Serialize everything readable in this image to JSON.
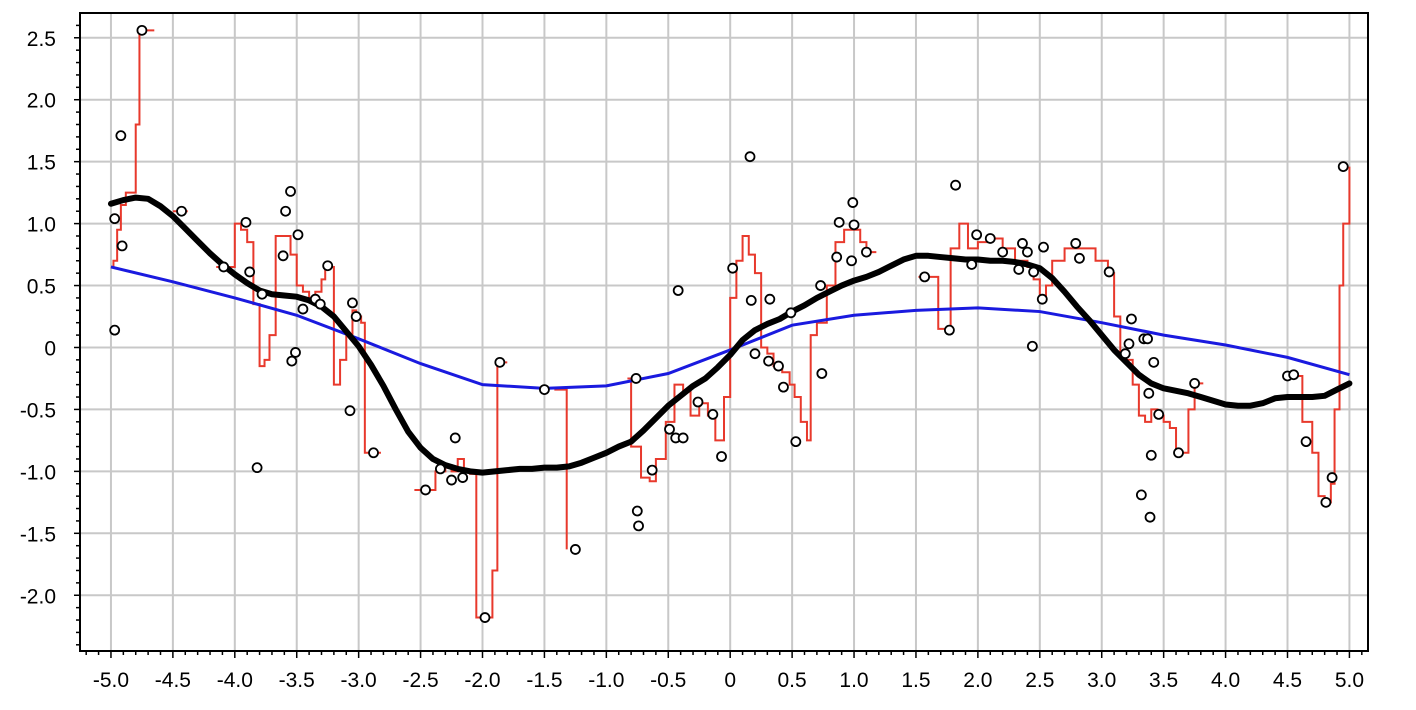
{
  "chart_data": {
    "type": "scatter",
    "title": "",
    "xlabel": "",
    "ylabel": "",
    "xlim": [
      -5.25,
      5.15
    ],
    "ylim": [
      -2.45,
      2.7
    ],
    "grid": true,
    "x_ticks": [
      -5.0,
      -4.5,
      -4.0,
      -3.5,
      -3.0,
      -2.5,
      -2.0,
      -1.5,
      -1.0,
      -0.5,
      0,
      0.5,
      1.0,
      1.5,
      2.0,
      2.5,
      3.0,
      3.5,
      4.0,
      4.5,
      5.0
    ],
    "x_tick_labels": [
      "-5.0",
      "-4.5",
      "-4.0",
      "-3.5",
      "-3.0",
      "-2.5",
      "-2.0",
      "-1.5",
      "-1.0",
      "-0.5",
      "0",
      "0.5",
      "1.0",
      "1.5",
      "2.0",
      "2.5",
      "3.0",
      "3.5",
      "4.0",
      "4.5",
      "5.0"
    ],
    "y_ticks": [
      2.5,
      2.0,
      1.5,
      1.0,
      0.5,
      0,
      -0.5,
      -1.0,
      -1.5,
      -2.0
    ],
    "y_tick_labels": [
      "2.5",
      "2.0",
      "1.5",
      "1.0",
      "0.5",
      "0",
      "-0.5",
      "-1.0",
      "-1.5",
      "-2.0"
    ],
    "colors": {
      "points": "#000000",
      "nearest_neighbor": "#e8392c",
      "smooth_fit": "#000000",
      "linear_fit": "#1a1adf",
      "grid": "#c8c8c8"
    },
    "points": [
      [
        -4.97,
        1.04
      ],
      [
        -4.97,
        0.14
      ],
      [
        -4.92,
        1.71
      ],
      [
        -4.91,
        0.82
      ],
      [
        -4.75,
        2.56
      ],
      [
        -4.43,
        1.1
      ],
      [
        -4.09,
        0.65
      ],
      [
        -3.91,
        1.01
      ],
      [
        -3.88,
        0.61
      ],
      [
        -3.82,
        -0.97
      ],
      [
        -3.78,
        0.43
      ],
      [
        -3.61,
        0.74
      ],
      [
        -3.59,
        1.1
      ],
      [
        -3.55,
        1.26
      ],
      [
        -3.54,
        -0.11
      ],
      [
        -3.51,
        -0.04
      ],
      [
        -3.49,
        0.91
      ],
      [
        -3.45,
        0.31
      ],
      [
        -3.35,
        0.39
      ],
      [
        -3.31,
        0.35
      ],
      [
        -3.25,
        0.66
      ],
      [
        -3.07,
        -0.51
      ],
      [
        -3.05,
        0.36
      ],
      [
        -3.02,
        0.25
      ],
      [
        -2.88,
        -0.85
      ],
      [
        -2.46,
        -1.15
      ],
      [
        -2.34,
        -0.98
      ],
      [
        -2.25,
        -1.07
      ],
      [
        -2.22,
        -0.73
      ],
      [
        -2.16,
        -1.05
      ],
      [
        -1.98,
        -2.18
      ],
      [
        -1.86,
        -0.12
      ],
      [
        -1.5,
        -0.34
      ],
      [
        -1.25,
        -1.63
      ],
      [
        -0.76,
        -0.25
      ],
      [
        -0.75,
        -1.32
      ],
      [
        -0.74,
        -1.44
      ],
      [
        -0.63,
        -0.99
      ],
      [
        -0.49,
        -0.66
      ],
      [
        -0.44,
        -0.73
      ],
      [
        -0.42,
        0.46
      ],
      [
        -0.38,
        -0.73
      ],
      [
        -0.26,
        -0.44
      ],
      [
        -0.14,
        -0.54
      ],
      [
        -0.07,
        -0.88
      ],
      [
        0.02,
        0.64
      ],
      [
        0.16,
        1.54
      ],
      [
        0.17,
        0.38
      ],
      [
        0.2,
        -0.05
      ],
      [
        0.31,
        -0.11
      ],
      [
        0.32,
        0.39
      ],
      [
        0.39,
        -0.15
      ],
      [
        0.43,
        -0.32
      ],
      [
        0.49,
        0.28
      ],
      [
        0.53,
        -0.76
      ],
      [
        0.73,
        0.5
      ],
      [
        0.74,
        -0.21
      ],
      [
        0.86,
        0.73
      ],
      [
        0.88,
        1.01
      ],
      [
        0.98,
        0.7
      ],
      [
        0.99,
        1.17
      ],
      [
        1.0,
        0.99
      ],
      [
        1.1,
        0.77
      ],
      [
        1.57,
        0.57
      ],
      [
        1.77,
        0.14
      ],
      [
        1.82,
        1.31
      ],
      [
        1.95,
        0.67
      ],
      [
        1.99,
        0.91
      ],
      [
        2.1,
        0.88
      ],
      [
        2.2,
        0.77
      ],
      [
        2.33,
        0.63
      ],
      [
        2.36,
        0.84
      ],
      [
        2.4,
        0.77
      ],
      [
        2.44,
        0.01
      ],
      [
        2.45,
        0.61
      ],
      [
        2.52,
        0.39
      ],
      [
        2.53,
        0.81
      ],
      [
        2.79,
        0.84
      ],
      [
        2.82,
        0.72
      ],
      [
        3.06,
        0.61
      ],
      [
        3.19,
        -0.05
      ],
      [
        3.22,
        0.03
      ],
      [
        3.24,
        0.23
      ],
      [
        3.32,
        -1.19
      ],
      [
        3.34,
        0.07
      ],
      [
        3.37,
        0.07
      ],
      [
        3.38,
        -0.37
      ],
      [
        3.39,
        -1.37
      ],
      [
        3.4,
        -0.87
      ],
      [
        3.42,
        -0.12
      ],
      [
        3.46,
        -0.54
      ],
      [
        3.62,
        -0.85
      ],
      [
        3.75,
        -0.29
      ],
      [
        4.5,
        -0.23
      ],
      [
        4.55,
        -0.22
      ],
      [
        4.65,
        -0.76
      ],
      [
        4.81,
        -1.25
      ],
      [
        4.86,
        -1.05
      ],
      [
        4.95,
        1.46
      ]
    ],
    "smooth_fit": [
      [
        -5.0,
        1.16
      ],
      [
        -4.9,
        1.19
      ],
      [
        -4.8,
        1.21
      ],
      [
        -4.7,
        1.2
      ],
      [
        -4.6,
        1.14
      ],
      [
        -4.5,
        1.06
      ],
      [
        -4.4,
        0.96
      ],
      [
        -4.3,
        0.86
      ],
      [
        -4.2,
        0.76
      ],
      [
        -4.1,
        0.67
      ],
      [
        -4.0,
        0.59
      ],
      [
        -3.9,
        0.52
      ],
      [
        -3.8,
        0.46
      ],
      [
        -3.7,
        0.43
      ],
      [
        -3.6,
        0.42
      ],
      [
        -3.5,
        0.41
      ],
      [
        -3.4,
        0.38
      ],
      [
        -3.3,
        0.33
      ],
      [
        -3.2,
        0.25
      ],
      [
        -3.1,
        0.13
      ],
      [
        -3.0,
        0.01
      ],
      [
        -2.9,
        -0.14
      ],
      [
        -2.8,
        -0.31
      ],
      [
        -2.7,
        -0.5
      ],
      [
        -2.6,
        -0.68
      ],
      [
        -2.5,
        -0.81
      ],
      [
        -2.4,
        -0.9
      ],
      [
        -2.3,
        -0.95
      ],
      [
        -2.2,
        -0.98
      ],
      [
        -2.1,
        -1.0
      ],
      [
        -2.0,
        -1.01
      ],
      [
        -1.9,
        -1.0
      ],
      [
        -1.8,
        -0.99
      ],
      [
        -1.7,
        -0.98
      ],
      [
        -1.6,
        -0.98
      ],
      [
        -1.5,
        -0.97
      ],
      [
        -1.4,
        -0.97
      ],
      [
        -1.3,
        -0.96
      ],
      [
        -1.2,
        -0.93
      ],
      [
        -1.1,
        -0.89
      ],
      [
        -1.0,
        -0.85
      ],
      [
        -0.9,
        -0.8
      ],
      [
        -0.8,
        -0.76
      ],
      [
        -0.7,
        -0.67
      ],
      [
        -0.6,
        -0.57
      ],
      [
        -0.5,
        -0.47
      ],
      [
        -0.4,
        -0.39
      ],
      [
        -0.3,
        -0.31
      ],
      [
        -0.2,
        -0.25
      ],
      [
        -0.1,
        -0.16
      ],
      [
        0.0,
        -0.06
      ],
      [
        0.1,
        0.06
      ],
      [
        0.2,
        0.14
      ],
      [
        0.3,
        0.19
      ],
      [
        0.4,
        0.23
      ],
      [
        0.5,
        0.29
      ],
      [
        0.6,
        0.34
      ],
      [
        0.7,
        0.4
      ],
      [
        0.8,
        0.45
      ],
      [
        0.9,
        0.5
      ],
      [
        1.0,
        0.54
      ],
      [
        1.1,
        0.57
      ],
      [
        1.2,
        0.61
      ],
      [
        1.3,
        0.66
      ],
      [
        1.4,
        0.71
      ],
      [
        1.5,
        0.74
      ],
      [
        1.6,
        0.74
      ],
      [
        1.7,
        0.73
      ],
      [
        1.8,
        0.72
      ],
      [
        1.9,
        0.71
      ],
      [
        2.0,
        0.71
      ],
      [
        2.1,
        0.7
      ],
      [
        2.2,
        0.7
      ],
      [
        2.3,
        0.69
      ],
      [
        2.4,
        0.67
      ],
      [
        2.5,
        0.64
      ],
      [
        2.6,
        0.56
      ],
      [
        2.7,
        0.45
      ],
      [
        2.8,
        0.33
      ],
      [
        2.9,
        0.22
      ],
      [
        3.0,
        0.1
      ],
      [
        3.1,
        -0.02
      ],
      [
        3.2,
        -0.12
      ],
      [
        3.3,
        -0.22
      ],
      [
        3.4,
        -0.29
      ],
      [
        3.5,
        -0.33
      ],
      [
        3.6,
        -0.35
      ],
      [
        3.7,
        -0.37
      ],
      [
        3.8,
        -0.4
      ],
      [
        3.9,
        -0.43
      ],
      [
        4.0,
        -0.46
      ],
      [
        4.1,
        -0.47
      ],
      [
        4.2,
        -0.47
      ],
      [
        4.3,
        -0.45
      ],
      [
        4.4,
        -0.41
      ],
      [
        4.5,
        -0.4
      ],
      [
        4.6,
        -0.4
      ],
      [
        4.7,
        -0.4
      ],
      [
        4.8,
        -0.39
      ],
      [
        4.9,
        -0.34
      ],
      [
        5.0,
        -0.29
      ]
    ],
    "linear_fit": [
      [
        -5.0,
        0.65
      ],
      [
        -4.5,
        0.53
      ],
      [
        -4.0,
        0.4
      ],
      [
        -3.5,
        0.26
      ],
      [
        -3.0,
        0.07
      ],
      [
        -2.5,
        -0.13
      ],
      [
        -2.0,
        -0.3
      ],
      [
        -1.5,
        -0.33
      ],
      [
        -1.0,
        -0.31
      ],
      [
        -0.5,
        -0.21
      ],
      [
        0.0,
        -0.02
      ],
      [
        0.5,
        0.18
      ],
      [
        1.0,
        0.26
      ],
      [
        1.5,
        0.3
      ],
      [
        2.0,
        0.32
      ],
      [
        2.5,
        0.29
      ],
      [
        3.0,
        0.2
      ],
      [
        3.5,
        0.1
      ],
      [
        4.0,
        0.02
      ],
      [
        4.5,
        -0.08
      ],
      [
        5.0,
        -0.22
      ]
    ],
    "nearest_neighbor": [
      [
        -5.0,
        0.65
      ],
      [
        -4.98,
        0.7
      ],
      [
        -4.95,
        0.95
      ],
      [
        -4.92,
        1.15
      ],
      [
        -4.88,
        1.25
      ],
      [
        -4.82,
        1.25
      ],
      [
        -4.8,
        1.8
      ],
      [
        -4.77,
        2.56
      ],
      [
        -4.65,
        2.56
      ],
      [
        -4.5,
        1.1
      ],
      [
        -4.38,
        1.1
      ],
      [
        -4.15,
        0.65
      ],
      [
        -4.05,
        0.65
      ],
      [
        -4.0,
        1.0
      ],
      [
        -3.95,
        0.95
      ],
      [
        -3.9,
        0.85
      ],
      [
        -3.85,
        0.35
      ],
      [
        -3.8,
        -0.15
      ],
      [
        -3.76,
        -0.1
      ],
      [
        -3.72,
        0.1
      ],
      [
        -3.67,
        0.9
      ],
      [
        -3.6,
        0.9
      ],
      [
        -3.55,
        0.75
      ],
      [
        -3.5,
        0.5
      ],
      [
        -3.45,
        0.45
      ],
      [
        -3.4,
        0.4
      ],
      [
        -3.35,
        0.45
      ],
      [
        -3.3,
        0.55
      ],
      [
        -3.27,
        0.65
      ],
      [
        -3.22,
        0.65
      ],
      [
        -3.2,
        -0.3
      ],
      [
        -3.15,
        -0.1
      ],
      [
        -3.1,
        0.1
      ],
      [
        -3.05,
        0.3
      ],
      [
        -3.02,
        0.25
      ],
      [
        -2.98,
        0.2
      ],
      [
        -2.95,
        -0.85
      ],
      [
        -2.82,
        -0.85
      ],
      [
        -2.55,
        -1.15
      ],
      [
        -2.45,
        -1.15
      ],
      [
        -2.38,
        -1.0
      ],
      [
        -2.3,
        -0.95
      ],
      [
        -2.25,
        -1.0
      ],
      [
        -2.2,
        -0.9
      ],
      [
        -2.15,
        -1.0
      ],
      [
        -2.1,
        -1.02
      ],
      [
        -2.05,
        -2.18
      ],
      [
        -1.95,
        -2.18
      ],
      [
        -1.92,
        -1.8
      ],
      [
        -1.88,
        -0.12
      ],
      [
        -1.8,
        -0.12
      ],
      [
        -1.58,
        -0.34
      ],
      [
        -1.42,
        -0.34
      ],
      [
        -1.32,
        -1.63
      ],
      [
        -1.17,
        -1.63
      ],
      [
        -0.83,
        -0.25
      ],
      [
        -0.8,
        -0.8
      ],
      [
        -0.72,
        -1.05
      ],
      [
        -0.65,
        -1.08
      ],
      [
        -0.6,
        -0.9
      ],
      [
        -0.52,
        -0.6
      ],
      [
        -0.45,
        -0.3
      ],
      [
        -0.38,
        -0.35
      ],
      [
        -0.32,
        -0.55
      ],
      [
        -0.25,
        -0.45
      ],
      [
        -0.18,
        -0.55
      ],
      [
        -0.12,
        -0.75
      ],
      [
        -0.05,
        -0.4
      ],
      [
        0.0,
        0.4
      ],
      [
        0.05,
        0.7
      ],
      [
        0.1,
        0.9
      ],
      [
        0.15,
        0.75
      ],
      [
        0.2,
        0.6
      ],
      [
        0.25,
        0.0
      ],
      [
        0.3,
        -0.05
      ],
      [
        0.35,
        -0.15
      ],
      [
        0.42,
        -0.2
      ],
      [
        0.48,
        -0.3
      ],
      [
        0.52,
        -0.4
      ],
      [
        0.57,
        -0.6
      ],
      [
        0.62,
        -0.75
      ],
      [
        0.65,
        0.1
      ],
      [
        0.7,
        0.2
      ],
      [
        0.78,
        0.5
      ],
      [
        0.85,
        0.85
      ],
      [
        0.92,
        0.95
      ],
      [
        1.0,
        0.95
      ],
      [
        1.05,
        0.85
      ],
      [
        1.1,
        0.77
      ],
      [
        1.18,
        0.77
      ],
      [
        1.52,
        0.57
      ],
      [
        1.65,
        0.57
      ],
      [
        1.68,
        0.15
      ],
      [
        1.75,
        0.14
      ],
      [
        1.78,
        0.8
      ],
      [
        1.85,
        1.0
      ],
      [
        1.92,
        0.8
      ],
      [
        2.0,
        0.85
      ],
      [
        2.1,
        0.88
      ],
      [
        2.2,
        0.8
      ],
      [
        2.3,
        0.7
      ],
      [
        2.4,
        0.65
      ],
      [
        2.45,
        0.55
      ],
      [
        2.5,
        0.42
      ],
      [
        2.55,
        0.5
      ],
      [
        2.6,
        0.7
      ],
      [
        2.7,
        0.8
      ],
      [
        2.85,
        0.8
      ],
      [
        2.95,
        0.7
      ],
      [
        3.05,
        0.6
      ],
      [
        3.1,
        0.25
      ],
      [
        3.15,
        -0.05
      ],
      [
        3.2,
        -0.1
      ],
      [
        3.25,
        -0.3
      ],
      [
        3.3,
        -0.55
      ],
      [
        3.35,
        -0.6
      ],
      [
        3.4,
        -0.5
      ],
      [
        3.45,
        -0.55
      ],
      [
        3.5,
        -0.6
      ],
      [
        3.55,
        -0.65
      ],
      [
        3.6,
        -0.85
      ],
      [
        3.65,
        -0.85
      ],
      [
        3.7,
        -0.5
      ],
      [
        3.75,
        -0.29
      ],
      [
        3.82,
        -0.29
      ],
      [
        4.42,
        -0.23
      ],
      [
        4.58,
        -0.23
      ],
      [
        4.62,
        -0.6
      ],
      [
        4.7,
        -0.85
      ],
      [
        4.75,
        -1.2
      ],
      [
        4.8,
        -1.25
      ],
      [
        4.85,
        -1.1
      ],
      [
        4.88,
        -0.5
      ],
      [
        4.92,
        0.5
      ],
      [
        4.95,
        1.0
      ],
      [
        5.0,
        1.46
      ]
    ]
  }
}
